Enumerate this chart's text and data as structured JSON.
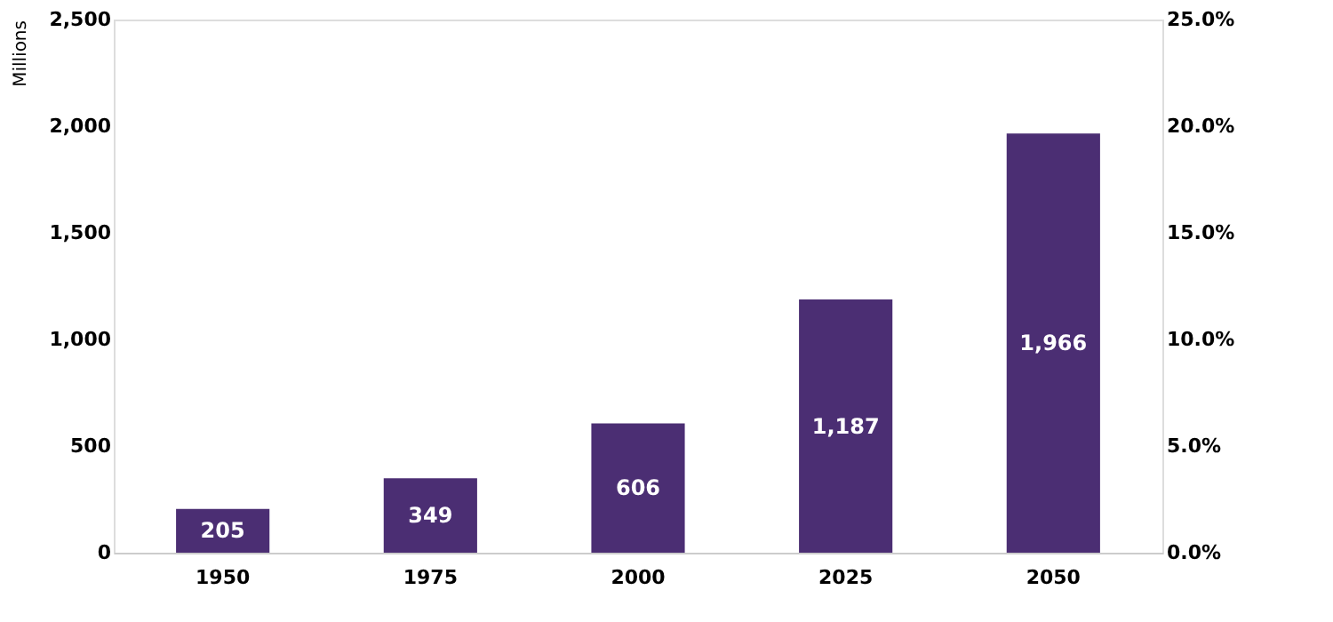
{
  "chart_data": {
    "type": "bar",
    "categories": [
      "1950",
      "1975",
      "2000",
      "2025",
      "2050"
    ],
    "series": [
      {
        "color": "#4b2e73",
        "values": [
          205,
          349,
          606,
          1187,
          1966
        ],
        "value_labels": [
          "205",
          "349",
          "606",
          "1,187",
          "1,966"
        ]
      }
    ],
    "ylabel": "Millions",
    "ylim": [
      0,
      2500
    ],
    "yticks": [
      {
        "value": 0,
        "label": "0"
      },
      {
        "value": 500,
        "label": "500"
      },
      {
        "value": 1000,
        "label": "1,000"
      },
      {
        "value": 1500,
        "label": "1,500"
      },
      {
        "value": 2000,
        "label": "2,000"
      },
      {
        "value": 2500,
        "label": "2,500"
      }
    ],
    "y2lim": [
      0,
      25
    ],
    "y2ticks": [
      {
        "value": 0,
        "label": "0.0%"
      },
      {
        "value": 5,
        "label": "5.0%"
      },
      {
        "value": 10,
        "label": "10.0%"
      },
      {
        "value": 15,
        "label": "15.0%"
      },
      {
        "value": 20,
        "label": "20.0%"
      },
      {
        "value": 25,
        "label": "25.0%"
      }
    ],
    "grid": false,
    "legend": false
  }
}
